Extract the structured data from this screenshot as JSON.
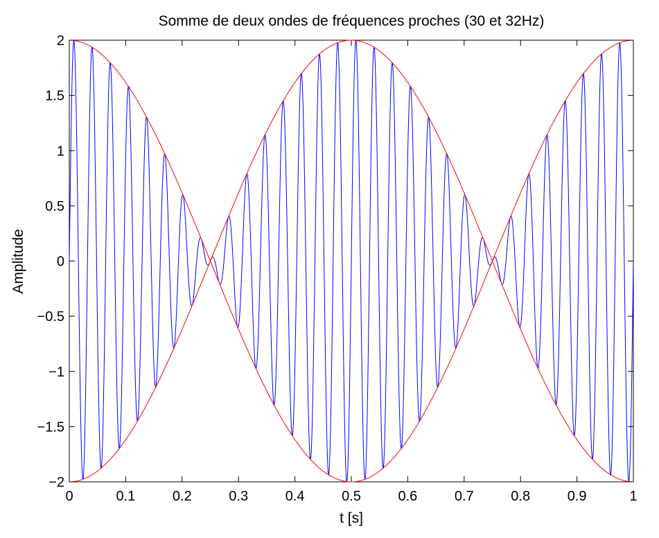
{
  "chart_data": {
    "type": "line",
    "title": "Somme de deux ondes de fréquences proches (30 et 32Hz)",
    "xlabel": "t [s]",
    "ylabel": "Amplitude",
    "xlim": [
      0,
      1
    ],
    "ylim": [
      -2,
      2
    ],
    "x_ticks": [
      0,
      0.1,
      0.2,
      0.3,
      0.4,
      0.5,
      0.6,
      0.7,
      0.8,
      0.9,
      1
    ],
    "x_tick_labels": [
      "0",
      "0.1",
      "0.2",
      "0.3",
      "0.4",
      "0.5",
      "0.6",
      "0.7",
      "0.8",
      "0.9",
      "1"
    ],
    "y_ticks": [
      2,
      1.5,
      1,
      0.5,
      0,
      -0.5,
      -1,
      -1.5,
      -2
    ],
    "y_tick_labels": [
      "2",
      "1.5",
      "1",
      "0.5",
      "0",
      "−0.5",
      "−1",
      "−1.5",
      "−2"
    ],
    "grid": false,
    "series": [
      {
        "role": "signal",
        "color": "#0000ff",
        "formula": "sin(2*pi*30*t) + sin(2*pi*32*t)",
        "frequencies_hz": [
          30,
          32
        ]
      },
      {
        "role": "envelope-positive",
        "color": "#ff0000",
        "formula": "2*cos(2*pi*1*t)"
      },
      {
        "role": "envelope-negative",
        "color": "#ff0000",
        "formula": "-2*cos(2*pi*1*t)"
      }
    ]
  }
}
